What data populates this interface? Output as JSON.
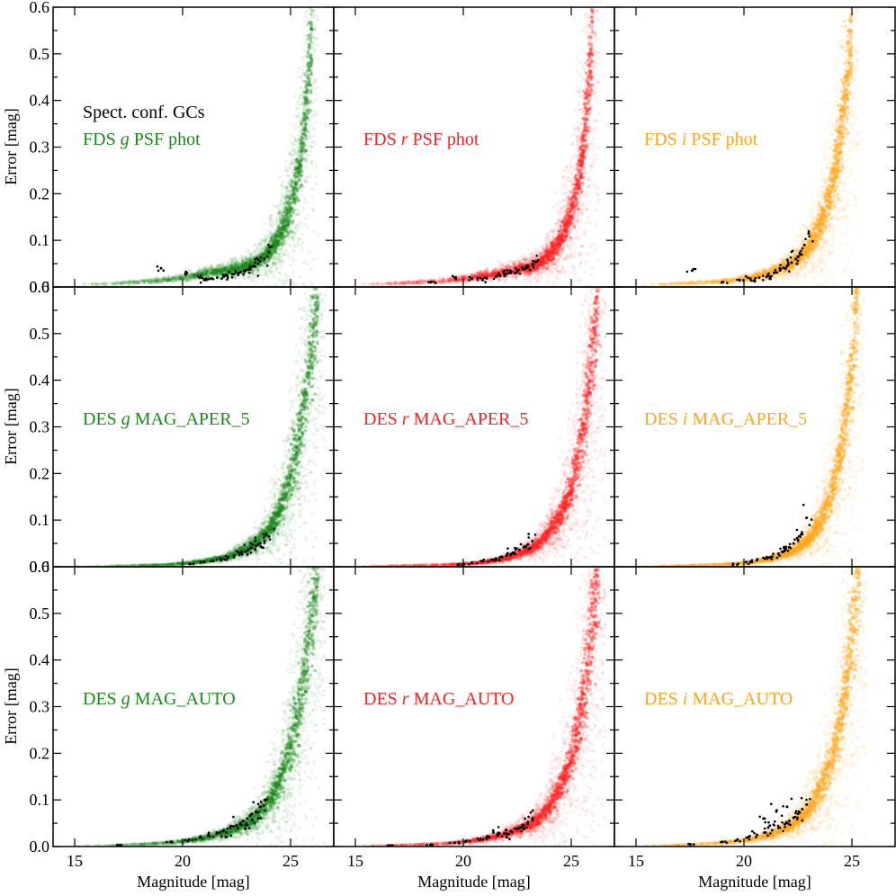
{
  "chart_data": {
    "type": "scatter",
    "title": "",
    "xlabel": "Magnitude [mag]",
    "ylabel": "Error [mag]",
    "xlim": [
      14,
      27
    ],
    "ylim": [
      0,
      0.6
    ],
    "xticks": [
      "15",
      "20",
      "25"
    ],
    "yticks": [
      "0.0",
      "0.1",
      "0.2",
      "0.3",
      "0.4",
      "0.5",
      "0.6"
    ],
    "legend": {
      "label": "Spect. conf. GCs",
      "marker_color": "#000000",
      "placement": "top-left of first panel"
    },
    "band_colors": {
      "g": "#1a8a1a",
      "r": "#ff2020",
      "i": "#ffa51a"
    },
    "panels": [
      {
        "row": 0,
        "col": 0,
        "band": "g",
        "label_prefix": "FDS",
        "band_letter": "g",
        "label_suffix": "PSF phot",
        "field_curve": {
          "mag": [
            15,
            17,
            19,
            20,
            21,
            22,
            23,
            23.5,
            24,
            24.5,
            25,
            25.5,
            26
          ],
          "err": [
            0.005,
            0.008,
            0.014,
            0.02,
            0.028,
            0.035,
            0.045,
            0.055,
            0.075,
            0.11,
            0.17,
            0.28,
            0.54
          ]
        },
        "gc_points": {
          "mag": [
            19.0,
            20.2,
            20.8,
            21.3,
            21.6,
            22.0,
            22.3,
            22.6,
            22.9,
            23.1,
            23.3,
            23.5,
            23.8,
            24.0,
            21.0,
            21.9,
            22.7,
            23.6
          ],
          "err": [
            0.04,
            0.03,
            0.02,
            0.018,
            0.02,
            0.025,
            0.028,
            0.03,
            0.035,
            0.04,
            0.045,
            0.05,
            0.06,
            0.075,
            0.015,
            0.022,
            0.032,
            0.055
          ]
        }
      },
      {
        "row": 0,
        "col": 1,
        "band": "r",
        "label_prefix": "FDS",
        "band_letter": "r",
        "label_suffix": "PSF phot",
        "field_curve": {
          "mag": [
            15,
            17,
            19,
            20,
            21,
            22,
            23,
            23.5,
            24,
            24.5,
            25,
            25.5,
            26
          ],
          "err": [
            0.005,
            0.008,
            0.013,
            0.018,
            0.025,
            0.032,
            0.042,
            0.05,
            0.07,
            0.1,
            0.16,
            0.27,
            0.54
          ]
        },
        "gc_points": {
          "mag": [
            18.5,
            19.6,
            20.4,
            21.0,
            21.5,
            21.9,
            22.2,
            22.5,
            22.8,
            23.0,
            23.2,
            23.4,
            20.9,
            21.7,
            22.4
          ],
          "err": [
            0.01,
            0.02,
            0.018,
            0.02,
            0.022,
            0.028,
            0.03,
            0.033,
            0.038,
            0.042,
            0.048,
            0.055,
            0.015,
            0.025,
            0.03
          ]
        }
      },
      {
        "row": 0,
        "col": 2,
        "band": "i",
        "label_prefix": "FDS",
        "band_letter": "i",
        "label_suffix": "PSF phot",
        "field_curve": {
          "mag": [
            15,
            17,
            19,
            20,
            21,
            22,
            22.5,
            23,
            23.5,
            24,
            24.5,
            25
          ],
          "err": [
            0.004,
            0.007,
            0.012,
            0.018,
            0.028,
            0.045,
            0.06,
            0.085,
            0.13,
            0.2,
            0.33,
            0.54
          ]
        },
        "gc_points": {
          "mag": [
            17.6,
            19.0,
            19.8,
            20.3,
            20.7,
            21.1,
            21.4,
            21.7,
            22.0,
            22.2,
            22.4,
            22.6,
            22.8,
            23.0,
            20.5,
            21.2,
            21.9,
            22.5
          ],
          "err": [
            0.035,
            0.01,
            0.015,
            0.018,
            0.02,
            0.025,
            0.03,
            0.038,
            0.045,
            0.052,
            0.06,
            0.07,
            0.09,
            0.115,
            0.012,
            0.022,
            0.04,
            0.065
          ]
        }
      },
      {
        "row": 1,
        "col": 0,
        "band": "g",
        "label_prefix": "DES",
        "band_letter": "g",
        "label_suffix": "MAG_APER_5",
        "field_curve": {
          "mag": [
            15,
            17,
            19,
            20,
            21,
            22,
            23,
            23.5,
            24,
            24.5,
            25,
            25.5,
            26,
            26.3
          ],
          "err": [
            0.001,
            0.002,
            0.004,
            0.007,
            0.012,
            0.02,
            0.04,
            0.055,
            0.08,
            0.12,
            0.19,
            0.3,
            0.48,
            0.62
          ]
        },
        "gc_points": {
          "mag": [
            20.5,
            21.0,
            21.4,
            21.8,
            22.1,
            22.4,
            22.7,
            23.0,
            23.2,
            23.4,
            23.6,
            23.8,
            24.0,
            22.9,
            23.5
          ],
          "err": [
            0.006,
            0.01,
            0.012,
            0.016,
            0.02,
            0.024,
            0.03,
            0.035,
            0.04,
            0.045,
            0.05,
            0.055,
            0.065,
            0.032,
            0.048
          ]
        }
      },
      {
        "row": 1,
        "col": 1,
        "band": "r",
        "label_prefix": "DES",
        "band_letter": "r",
        "label_suffix": "MAG_APER_5",
        "field_curve": {
          "mag": [
            15,
            17,
            19,
            20,
            21,
            22,
            23,
            23.5,
            24,
            24.5,
            25,
            25.5,
            26,
            26.3
          ],
          "err": [
            0.001,
            0.002,
            0.004,
            0.006,
            0.01,
            0.018,
            0.035,
            0.05,
            0.075,
            0.11,
            0.17,
            0.28,
            0.45,
            0.62
          ]
        },
        "gc_points": {
          "mag": [
            19.8,
            20.4,
            20.9,
            21.3,
            21.7,
            22.0,
            22.3,
            22.6,
            22.8,
            23.0,
            23.2,
            21.5,
            22.2
          ],
          "err": [
            0.005,
            0.008,
            0.012,
            0.015,
            0.02,
            0.024,
            0.03,
            0.036,
            0.042,
            0.048,
            0.055,
            0.018,
            0.027
          ]
        }
      },
      {
        "row": 1,
        "col": 2,
        "band": "i",
        "label_prefix": "DES",
        "band_letter": "i",
        "label_suffix": "MAG_APER_5",
        "field_curve": {
          "mag": [
            15,
            17,
            19,
            20,
            21,
            22,
            22.5,
            23,
            23.5,
            24,
            24.5,
            25,
            25.3
          ],
          "err": [
            0.001,
            0.002,
            0.005,
            0.008,
            0.014,
            0.028,
            0.04,
            0.06,
            0.095,
            0.15,
            0.25,
            0.42,
            0.62
          ]
        },
        "gc_points": {
          "mag": [
            19.5,
            20.1,
            20.6,
            21.0,
            21.3,
            21.6,
            21.9,
            22.1,
            22.3,
            22.5,
            22.7,
            22.9,
            21.2,
            21.8
          ],
          "err": [
            0.006,
            0.01,
            0.014,
            0.018,
            0.022,
            0.028,
            0.035,
            0.042,
            0.05,
            0.058,
            0.07,
            0.105,
            0.02,
            0.032
          ]
        }
      },
      {
        "row": 2,
        "col": 0,
        "band": "g",
        "label_prefix": "DES",
        "band_letter": "g",
        "label_suffix": "MAG_AUTO",
        "field_curve": {
          "mag": [
            15,
            17,
            19,
            20,
            21,
            22,
            23,
            23.5,
            24,
            24.5,
            25,
            25.5,
            26,
            26.3
          ],
          "err": [
            0.001,
            0.003,
            0.007,
            0.011,
            0.018,
            0.03,
            0.05,
            0.068,
            0.095,
            0.14,
            0.21,
            0.32,
            0.5,
            0.62
          ]
        },
        "gc_points": {
          "mag": [
            17.0,
            19.5,
            20.3,
            20.8,
            21.2,
            21.6,
            21.9,
            22.2,
            22.5,
            22.8,
            23.0,
            23.2,
            23.4,
            23.6,
            23.8,
            22.0,
            22.9,
            23.5
          ],
          "err": [
            0.003,
            0.01,
            0.015,
            0.02,
            0.025,
            0.03,
            0.035,
            0.04,
            0.045,
            0.055,
            0.06,
            0.07,
            0.075,
            0.085,
            0.1,
            0.02,
            0.038,
            0.06
          ]
        }
      },
      {
        "row": 2,
        "col": 1,
        "band": "r",
        "label_prefix": "DES",
        "band_letter": "r",
        "label_suffix": "MAG_AUTO",
        "field_curve": {
          "mag": [
            15,
            17,
            19,
            20,
            21,
            22,
            23,
            23.5,
            24,
            24.5,
            25,
            25.5,
            26,
            26.3
          ],
          "err": [
            0.001,
            0.003,
            0.006,
            0.01,
            0.016,
            0.027,
            0.045,
            0.06,
            0.085,
            0.125,
            0.19,
            0.3,
            0.48,
            0.62
          ]
        },
        "gc_points": {
          "mag": [
            16.5,
            18.5,
            19.6,
            20.3,
            20.8,
            21.2,
            21.6,
            21.9,
            22.2,
            22.5,
            22.8,
            23.0,
            23.2,
            21.4,
            22.0,
            22.6
          ],
          "err": [
            0.002,
            0.004,
            0.008,
            0.012,
            0.016,
            0.02,
            0.024,
            0.028,
            0.033,
            0.038,
            0.045,
            0.052,
            0.06,
            0.03,
            0.02,
            0.04
          ]
        }
      },
      {
        "row": 2,
        "col": 2,
        "band": "i",
        "label_prefix": "DES",
        "band_letter": "i",
        "label_suffix": "MAG_AUTO",
        "field_curve": {
          "mag": [
            15,
            17,
            19,
            20,
            21,
            22,
            22.5,
            23,
            23.5,
            24,
            24.5,
            25,
            25.4
          ],
          "err": [
            0.001,
            0.003,
            0.008,
            0.013,
            0.022,
            0.04,
            0.055,
            0.08,
            0.12,
            0.18,
            0.28,
            0.45,
            0.62
          ]
        },
        "gc_points": {
          "mag": [
            17.5,
            19.0,
            19.7,
            20.2,
            20.6,
            21.0,
            21.3,
            21.6,
            21.9,
            22.1,
            22.3,
            22.5,
            22.7,
            22.9,
            20.9,
            21.5,
            22.0,
            21.2
          ],
          "err": [
            0.005,
            0.01,
            0.015,
            0.02,
            0.025,
            0.03,
            0.035,
            0.04,
            0.048,
            0.055,
            0.062,
            0.07,
            0.08,
            0.09,
            0.06,
            0.075,
            0.085,
            0.045
          ]
        }
      }
    ]
  }
}
